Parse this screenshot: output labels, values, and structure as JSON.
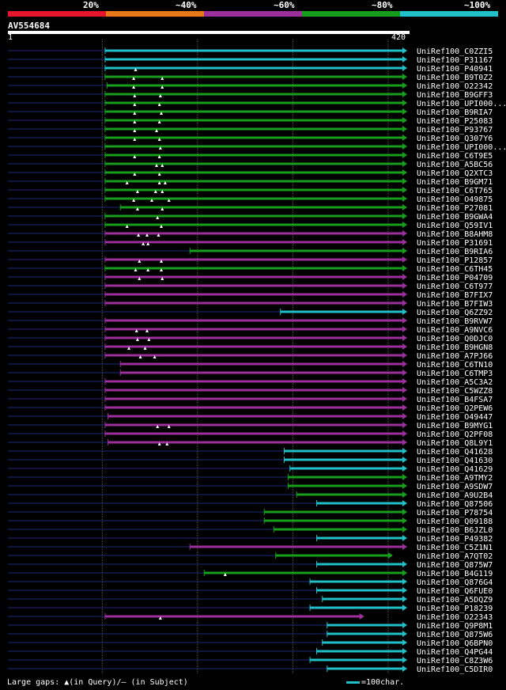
{
  "query_id": "AV554684",
  "legend": [
    {
      "label": "20%",
      "color": "#e6142d"
    },
    {
      "label": "~40%",
      "color": "#ea7a19"
    },
    {
      "label": "~60%",
      "color": "#9b2f9c"
    },
    {
      "label": "~80%",
      "color": "#169e1c"
    },
    {
      "label": "~100%",
      "color": "#1fc0c8"
    }
  ],
  "footer": {
    "gaps_text": "Large gaps: ▲(in Query)/— (in Subject)",
    "scale_text": "=100char."
  },
  "chart_data": {
    "type": "alignment-overview",
    "title": "AV554684",
    "query_length": 420,
    "axis_start_label": "1",
    "axis_end_label": "420",
    "xlim": [
      1,
      420
    ],
    "gridlines": [
      100,
      200,
      300,
      400
    ],
    "identity_bins": [
      "20%",
      "~40%",
      "~60%",
      "~80%",
      "~100%"
    ],
    "hits": [
      {
        "name": "UniRef100_C0ZZI5",
        "start": 103,
        "end": 420,
        "identity": "~100%",
        "gaps": []
      },
      {
        "name": "UniRef100_P31167",
        "start": 103,
        "end": 420,
        "identity": "~100%",
        "gaps": []
      },
      {
        "name": "UniRef100_P40941",
        "start": 103,
        "end": 420,
        "identity": "~100%",
        "gaps": [
          135
        ]
      },
      {
        "name": "UniRef100_B9T0Z2",
        "start": 103,
        "end": 420,
        "identity": "~80%",
        "gaps": [
          133,
          163
        ]
      },
      {
        "name": "UniRef100_O22342",
        "start": 105,
        "end": 420,
        "identity": "~80%",
        "gaps": [
          133,
          163
        ]
      },
      {
        "name": "UniRef100_B9GFF3",
        "start": 103,
        "end": 420,
        "identity": "~80%",
        "gaps": [
          134,
          161
        ]
      },
      {
        "name": "UniRef100_UPI000..a",
        "start": 103,
        "end": 420,
        "identity": "~80%",
        "gaps": [
          134,
          160
        ]
      },
      {
        "name": "UniRef100_B9RIA7",
        "start": 103,
        "end": 420,
        "identity": "~80%",
        "gaps": [
          134,
          162
        ]
      },
      {
        "name": "UniRef100_P25083",
        "start": 103,
        "end": 420,
        "identity": "~80%",
        "gaps": [
          134,
          160
        ]
      },
      {
        "name": "UniRef100_P93767",
        "start": 103,
        "end": 420,
        "identity": "~80%",
        "gaps": [
          134,
          157
        ]
      },
      {
        "name": "UniRef100_Q307Y6",
        "start": 103,
        "end": 420,
        "identity": "~80%",
        "gaps": [
          134,
          160
        ]
      },
      {
        "name": "UniRef100_UPI000..b",
        "start": 103,
        "end": 420,
        "identity": "~80%",
        "gaps": [
          161
        ]
      },
      {
        "name": "UniRef100_C6T9E5",
        "start": 103,
        "end": 420,
        "identity": "~80%",
        "gaps": [
          134,
          160
        ]
      },
      {
        "name": "UniRef100_A5BC56",
        "start": 103,
        "end": 420,
        "identity": "~80%",
        "gaps": [
          157,
          163
        ]
      },
      {
        "name": "UniRef100_Q2XTC3",
        "start": 103,
        "end": 420,
        "identity": "~80%",
        "gaps": [
          134,
          160
        ]
      },
      {
        "name": "UniRef100_B9GM71",
        "start": 103,
        "end": 420,
        "identity": "~80%",
        "gaps": [
          126,
          160,
          166
        ]
      },
      {
        "name": "UniRef100_C6T765",
        "start": 103,
        "end": 420,
        "identity": "~80%",
        "gaps": [
          137,
          156,
          163
        ]
      },
      {
        "name": "UniRef100_O49875",
        "start": 103,
        "end": 420,
        "identity": "~80%",
        "gaps": [
          133,
          152,
          170
        ]
      },
      {
        "name": "UniRef100_P27081",
        "start": 119,
        "end": 420,
        "identity": "~80%",
        "gaps": [
          137,
          163
        ]
      },
      {
        "name": "UniRef100_B9GWA4",
        "start": 103,
        "end": 420,
        "identity": "~80%",
        "gaps": [
          158
        ]
      },
      {
        "name": "UniRef100_Q59IV1",
        "start": 103,
        "end": 420,
        "identity": "~80%",
        "gaps": [
          126,
          162
        ]
      },
      {
        "name": "UniRef100_B8AHM8",
        "start": 103,
        "end": 420,
        "identity": "~60%",
        "gaps": [
          138,
          147,
          159
        ]
      },
      {
        "name": "UniRef100_P31691",
        "start": 103,
        "end": 420,
        "identity": "~60%",
        "gaps": [
          143,
          148
        ]
      },
      {
        "name": "UniRef100_B9RIA6",
        "start": 192,
        "end": 420,
        "identity": "~80%",
        "gaps": []
      },
      {
        "name": "UniRef100_P12857",
        "start": 103,
        "end": 420,
        "identity": "~60%",
        "gaps": [
          139,
          162
        ]
      },
      {
        "name": "UniRef100_C6TH45",
        "start": 103,
        "end": 420,
        "identity": "~80%",
        "gaps": [
          135,
          148,
          162
        ]
      },
      {
        "name": "UniRef100_P04709",
        "start": 103,
        "end": 420,
        "identity": "~60%",
        "gaps": [
          139,
          163
        ]
      },
      {
        "name": "UniRef100_C6T977",
        "start": 103,
        "end": 420,
        "identity": "~60%",
        "gaps": []
      },
      {
        "name": "UniRef100_B7FIX7",
        "start": 103,
        "end": 420,
        "identity": "~60%",
        "gaps": []
      },
      {
        "name": "UniRef100_B7FIW3",
        "start": 103,
        "end": 420,
        "identity": "~60%",
        "gaps": []
      },
      {
        "name": "UniRef100_Q6ZZ92",
        "start": 287,
        "end": 420,
        "identity": "~100%",
        "gaps": []
      },
      {
        "name": "UniRef100_B9RVW7",
        "start": 103,
        "end": 420,
        "identity": "~60%",
        "gaps": []
      },
      {
        "name": "UniRef100_A9NVC6",
        "start": 103,
        "end": 420,
        "identity": "~60%",
        "gaps": [
          136,
          147
        ]
      },
      {
        "name": "UniRef100_Q0DJC0",
        "start": 103,
        "end": 420,
        "identity": "~60%",
        "gaps": [
          137,
          149
        ]
      },
      {
        "name": "UniRef100_B9HGN8",
        "start": 103,
        "end": 420,
        "identity": "~60%",
        "gaps": [
          128,
          145
        ]
      },
      {
        "name": "UniRef100_A7PJ66",
        "start": 103,
        "end": 420,
        "identity": "~60%",
        "gaps": [
          140,
          155
        ]
      },
      {
        "name": "UniRef100_C6TN10",
        "start": 119,
        "end": 420,
        "identity": "~60%",
        "gaps": []
      },
      {
        "name": "UniRef100_C6TMP3",
        "start": 119,
        "end": 420,
        "identity": "~60%",
        "gaps": []
      },
      {
        "name": "UniRef100_A5C3A2",
        "start": 103,
        "end": 420,
        "identity": "~60%",
        "gaps": []
      },
      {
        "name": "UniRef100_C5WZZ8",
        "start": 103,
        "end": 420,
        "identity": "~60%",
        "gaps": []
      },
      {
        "name": "UniRef100_B4FSA7",
        "start": 103,
        "end": 420,
        "identity": "~60%",
        "gaps": []
      },
      {
        "name": "UniRef100_Q2PEW6",
        "start": 103,
        "end": 420,
        "identity": "~60%",
        "gaps": []
      },
      {
        "name": "UniRef100_O49447",
        "start": 106,
        "end": 420,
        "identity": "~60%",
        "gaps": []
      },
      {
        "name": "UniRef100_B9MYG1",
        "start": 103,
        "end": 420,
        "identity": "~60%",
        "gaps": [
          158,
          170
        ]
      },
      {
        "name": "UniRef100_Q2PF08",
        "start": 103,
        "end": 420,
        "identity": "~60%",
        "gaps": []
      },
      {
        "name": "UniRef100_Q8L9Y1",
        "start": 106,
        "end": 420,
        "identity": "~60%",
        "gaps": [
          160,
          168
        ]
      },
      {
        "name": "UniRef100_Q41628",
        "start": 291,
        "end": 420,
        "identity": "~100%",
        "gaps": []
      },
      {
        "name": "UniRef100_Q41630",
        "start": 291,
        "end": 420,
        "identity": "~100%",
        "gaps": []
      },
      {
        "name": "UniRef100_Q41629",
        "start": 297,
        "end": 420,
        "identity": "~100%",
        "gaps": []
      },
      {
        "name": "UniRef100_A9TMY2",
        "start": 295,
        "end": 420,
        "identity": "~80%",
        "gaps": []
      },
      {
        "name": "UniRef100_A9SDW7",
        "start": 295,
        "end": 420,
        "identity": "~80%",
        "gaps": []
      },
      {
        "name": "UniRef100_A9U2B4",
        "start": 304,
        "end": 420,
        "identity": "~80%",
        "gaps": []
      },
      {
        "name": "UniRef100_Q87506",
        "start": 325,
        "end": 420,
        "identity": "~100%",
        "gaps": []
      },
      {
        "name": "UniRef100_P78754",
        "start": 270,
        "end": 420,
        "identity": "~80%",
        "gaps": []
      },
      {
        "name": "UniRef100_Q09188",
        "start": 270,
        "end": 420,
        "identity": "~80%",
        "gaps": []
      },
      {
        "name": "UniRef100_B6JZL0",
        "start": 280,
        "end": 420,
        "identity": "~80%",
        "gaps": []
      },
      {
        "name": "UniRef100_P49382",
        "start": 325,
        "end": 420,
        "identity": "~100%",
        "gaps": []
      },
      {
        "name": "UniRef100_C5Z1N1",
        "start": 192,
        "end": 420,
        "identity": "~60%",
        "gaps": []
      },
      {
        "name": "UniRef100_A7QT02",
        "start": 282,
        "end": 405,
        "identity": "~80%",
        "gaps": []
      },
      {
        "name": "UniRef100_Q875W7",
        "start": 325,
        "end": 420,
        "identity": "~100%",
        "gaps": []
      },
      {
        "name": "UniRef100_B4G119",
        "start": 207,
        "end": 420,
        "identity": "~80%",
        "gaps": [
          229
        ]
      },
      {
        "name": "UniRef100_Q876G4",
        "start": 318,
        "end": 420,
        "identity": "~100%",
        "gaps": []
      },
      {
        "name": "UniRef100_Q6FUE0",
        "start": 325,
        "end": 420,
        "identity": "~100%",
        "gaps": []
      },
      {
        "name": "UniRef100_A5DQZ9",
        "start": 331,
        "end": 420,
        "identity": "~100%",
        "gaps": []
      },
      {
        "name": "UniRef100_P18239",
        "start": 318,
        "end": 420,
        "identity": "~100%",
        "gaps": []
      },
      {
        "name": "UniRef100_O22343",
        "start": 103,
        "end": 375,
        "identity": "~60%",
        "gaps": [
          161
        ]
      },
      {
        "name": "UniRef100_Q9P8M1",
        "start": 336,
        "end": 420,
        "identity": "~100%",
        "gaps": []
      },
      {
        "name": "UniRef100_Q875W6",
        "start": 336,
        "end": 420,
        "identity": "~100%",
        "gaps": []
      },
      {
        "name": "UniRef100_Q6BPN0",
        "start": 331,
        "end": 420,
        "identity": "~100%",
        "gaps": []
      },
      {
        "name": "UniRef100_Q4PG44",
        "start": 325,
        "end": 420,
        "identity": "~100%",
        "gaps": []
      },
      {
        "name": "UniRef100_C8Z3W6",
        "start": 318,
        "end": 420,
        "identity": "~100%",
        "gaps": []
      },
      {
        "name": "UniRef100_C5DIR0",
        "start": 336,
        "end": 420,
        "identity": "~100%",
        "gaps": []
      }
    ]
  }
}
